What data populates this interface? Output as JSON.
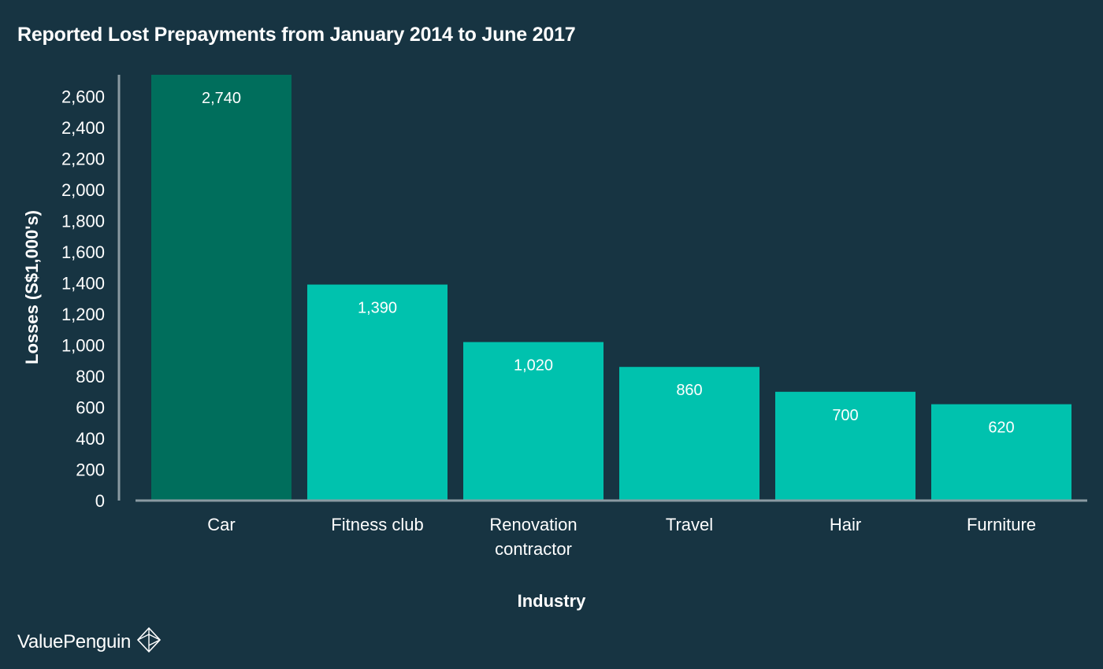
{
  "chart_data": {
    "type": "bar",
    "title": "Reported Lost Prepayments from January 2014 to June 2017",
    "xlabel": "Industry",
    "ylabel": "Losses (S$1,000's)",
    "categories": [
      "Car",
      "Fitness club",
      "Renovation contractor",
      "Travel",
      "Hair",
      "Furniture"
    ],
    "category_lines": [
      [
        "Car"
      ],
      [
        "Fitness club"
      ],
      [
        "Renovation",
        "contractor"
      ],
      [
        "Travel"
      ],
      [
        "Hair"
      ],
      [
        "Furniture"
      ]
    ],
    "values": [
      2740,
      1390,
      1020,
      860,
      700,
      620
    ],
    "value_labels": [
      "2,740",
      "1,390",
      "1,020",
      "860",
      "700",
      "620"
    ],
    "colors": [
      "#006e5c",
      "#00c2ae",
      "#00c2ae",
      "#00c2ae",
      "#00c2ae",
      "#00c2ae"
    ],
    "ylim": [
      0,
      2740
    ],
    "yticks": [
      0,
      200,
      400,
      600,
      800,
      1000,
      1200,
      1400,
      1600,
      1800,
      2000,
      2200,
      2400,
      2600
    ],
    "ytick_labels": [
      "0",
      "200",
      "400",
      "600",
      "800",
      "1,000",
      "1,200",
      "1,400",
      "1,600",
      "1,800",
      "2,000",
      "2,200",
      "2,400",
      "2,600"
    ],
    "grid": false,
    "legend": "none"
  },
  "branding": {
    "logo_text": "ValuePenguin",
    "logo_icon": "penguin-diamond-icon"
  },
  "colors": {
    "background": "#173442",
    "axis": "#8a9aa2",
    "text": "#ffffff"
  }
}
